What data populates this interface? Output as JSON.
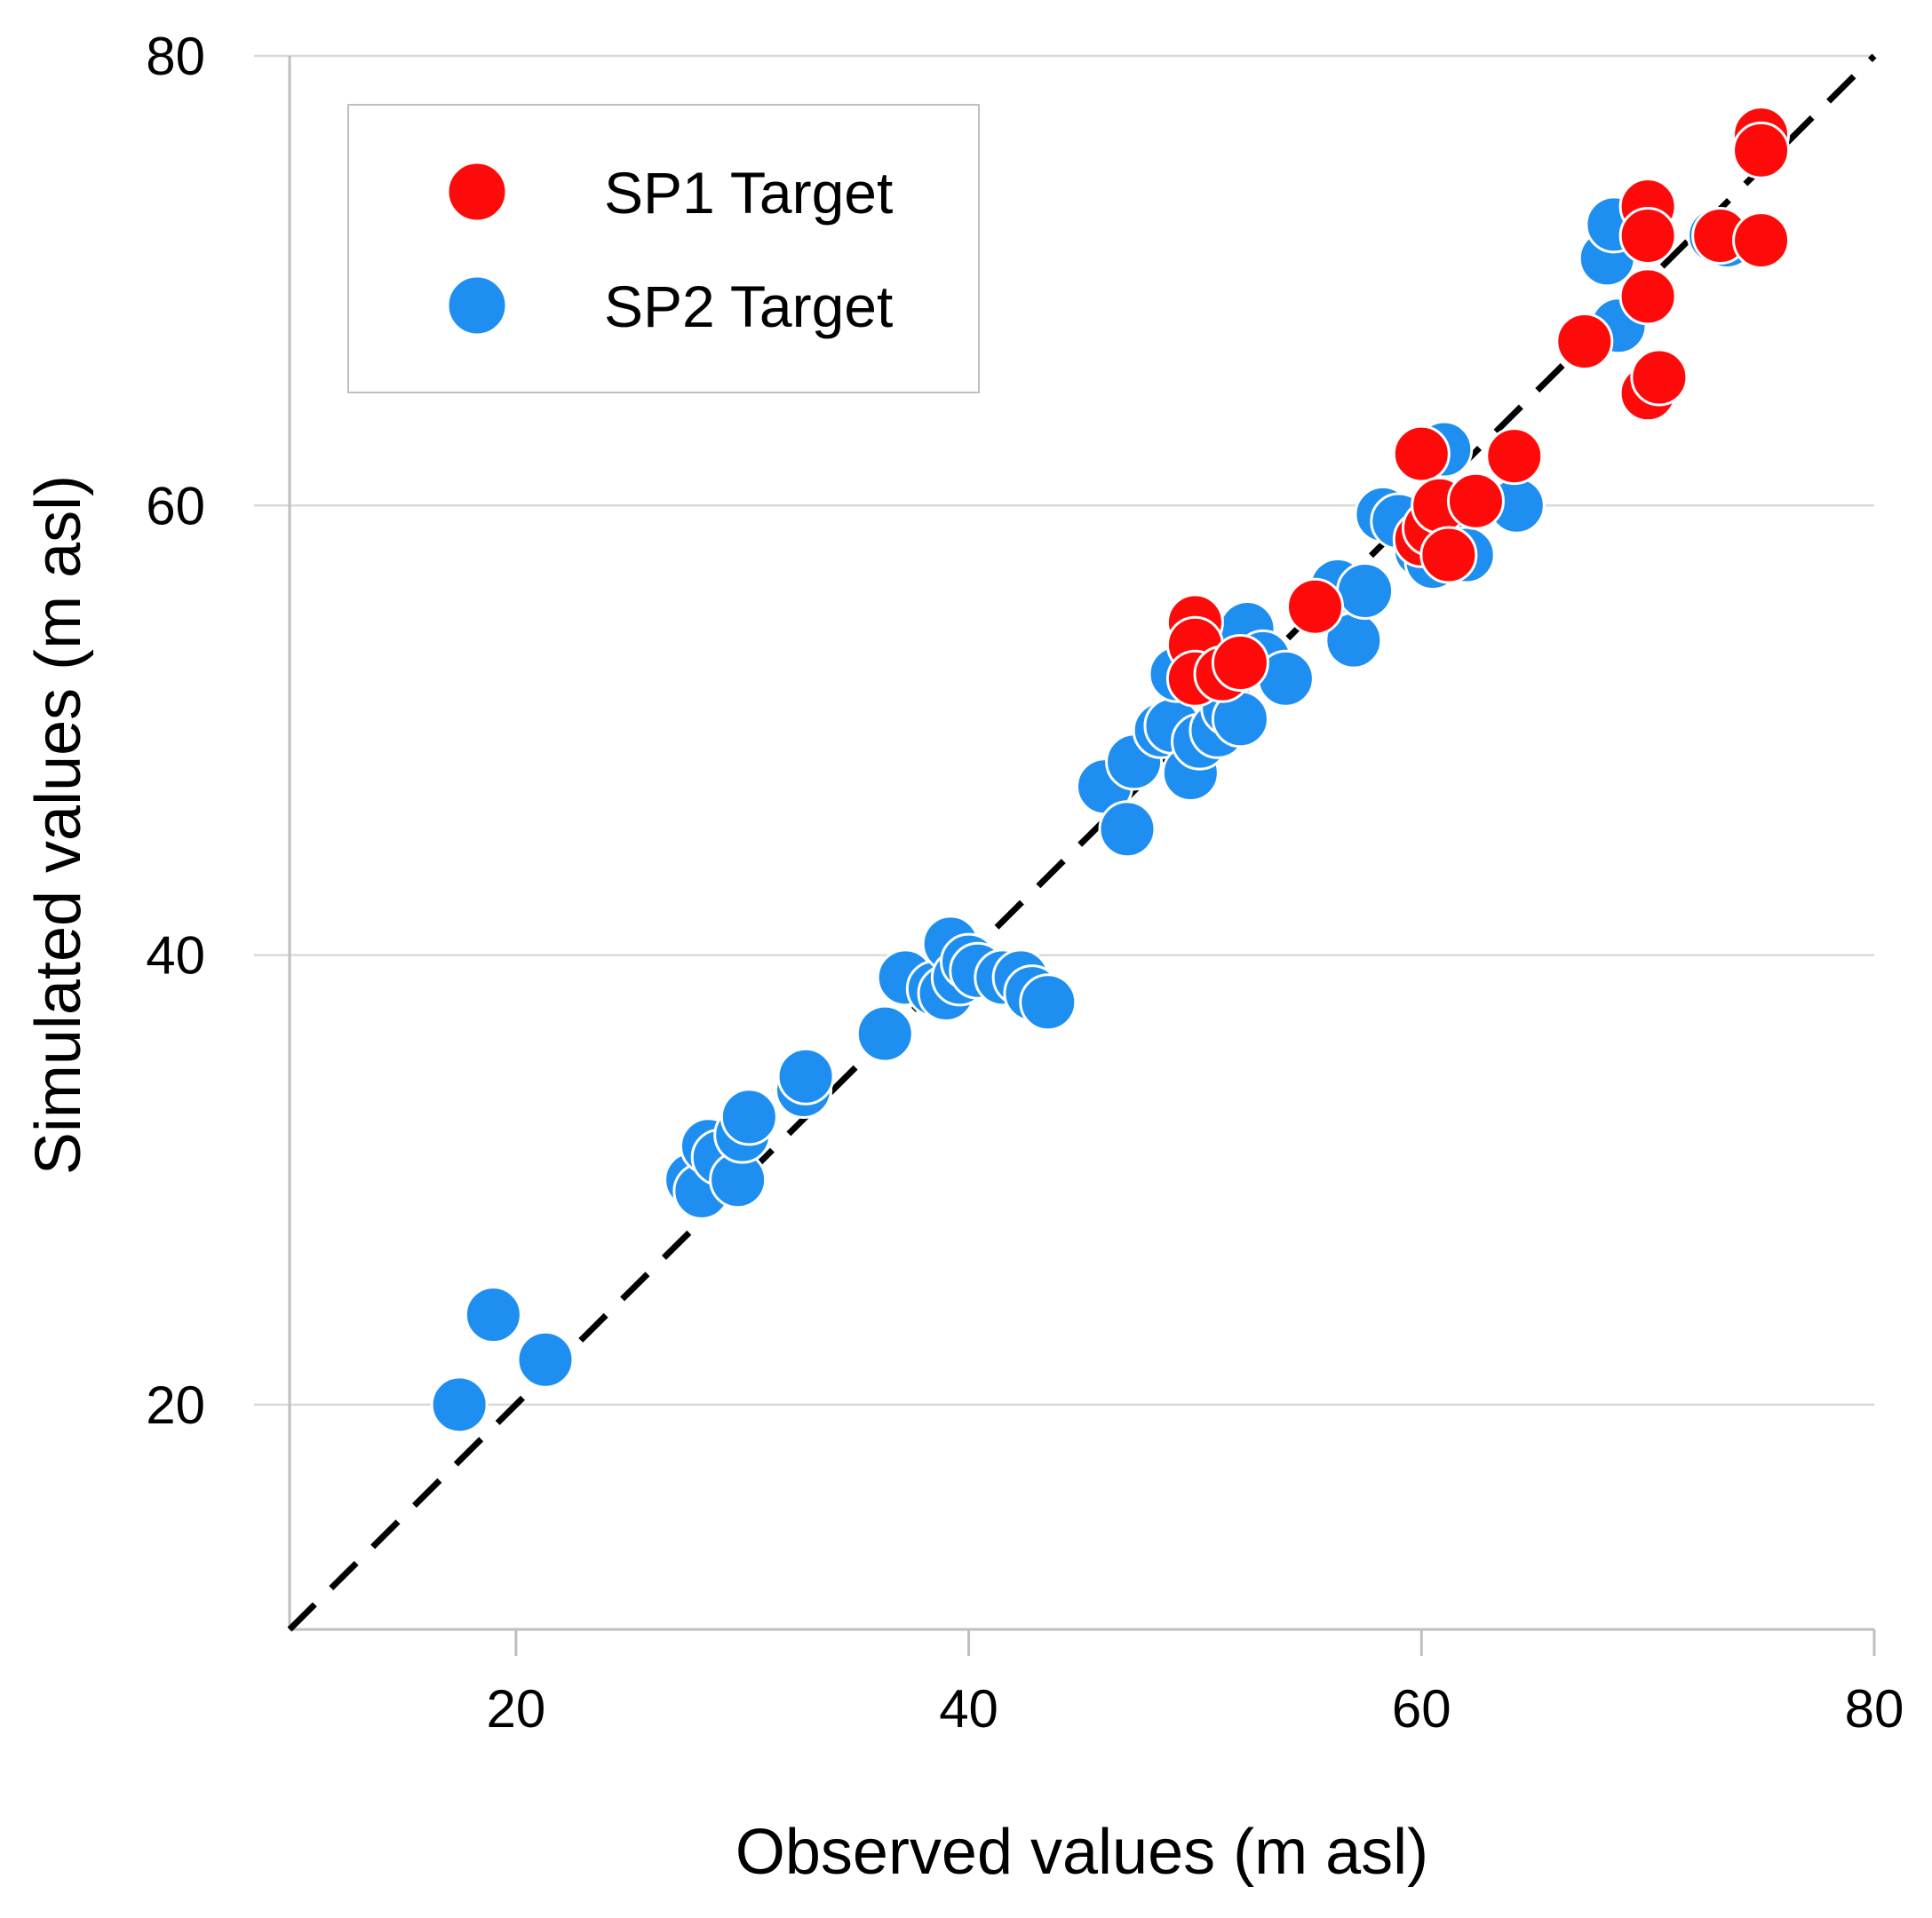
{
  "chart_data": {
    "type": "scatter",
    "title": "",
    "xlabel": "Observed values (m asl)",
    "ylabel": "Simulated values (m asl)",
    "xlim": [
      10,
      80
    ],
    "ylim": [
      10,
      80
    ],
    "xticks": [
      20,
      40,
      60,
      80
    ],
    "yticks": [
      20,
      40,
      60,
      80
    ],
    "grid": "horizontal",
    "reference_line": {
      "type": "1:1",
      "style": "dashed",
      "color": "#000000"
    },
    "legend": {
      "position": "top-left",
      "entries": [
        "SP1 Target",
        "SP2 Target"
      ]
    },
    "series": [
      {
        "name": "SP2 Target",
        "color": "#1E8FF0",
        "points": [
          [
            17.5,
            20.0
          ],
          [
            19.0,
            24.0
          ],
          [
            21.3,
            22.0
          ],
          [
            27.8,
            30.0
          ],
          [
            28.2,
            29.5
          ],
          [
            28.5,
            31.5
          ],
          [
            29.0,
            31.0
          ],
          [
            29.8,
            30.0
          ],
          [
            30.0,
            32.0
          ],
          [
            30.3,
            32.8
          ],
          [
            32.7,
            34.0
          ],
          [
            32.8,
            34.6
          ],
          [
            36.3,
            36.5
          ],
          [
            37.2,
            39.0
          ],
          [
            38.5,
            38.5
          ],
          [
            39.0,
            38.3
          ],
          [
            39.2,
            40.5
          ],
          [
            39.6,
            39.0
          ],
          [
            40.0,
            39.7
          ],
          [
            40.4,
            39.3
          ],
          [
            41.5,
            39.0
          ],
          [
            42.3,
            39.0
          ],
          [
            42.8,
            38.3
          ],
          [
            43.5,
            37.9
          ],
          [
            46.0,
            47.5
          ],
          [
            47.0,
            45.6
          ],
          [
            47.3,
            48.6
          ],
          [
            48.5,
            50.0
          ],
          [
            49.0,
            50.2
          ],
          [
            49.2,
            52.5
          ],
          [
            49.8,
            48.1
          ],
          [
            50.2,
            49.5
          ],
          [
            51.0,
            50.0
          ],
          [
            51.5,
            51.0
          ],
          [
            52.0,
            50.5
          ],
          [
            52.3,
            54.5
          ],
          [
            53.0,
            53.2
          ],
          [
            54.0,
            52.3
          ],
          [
            55.5,
            55.5
          ],
          [
            56.3,
            56.4
          ],
          [
            57.0,
            54.0
          ],
          [
            57.5,
            56.2
          ],
          [
            58.3,
            59.6
          ],
          [
            59.0,
            59.3
          ],
          [
            60.0,
            58.0
          ],
          [
            60.5,
            57.5
          ],
          [
            61.0,
            62.5
          ],
          [
            61.3,
            58.5
          ],
          [
            62.0,
            57.8
          ],
          [
            64.2,
            60.0
          ],
          [
            68.2,
            71.0
          ],
          [
            68.5,
            72.5
          ],
          [
            68.7,
            68.0
          ],
          [
            73.0,
            72.0
          ],
          [
            73.5,
            71.8
          ]
        ]
      },
      {
        "name": "SP1 Target",
        "color": "#FF0A0A",
        "points": [
          [
            50.0,
            54.8
          ],
          [
            50.0,
            53.8
          ],
          [
            50.0,
            52.3
          ],
          [
            51.2,
            52.5
          ],
          [
            52.0,
            53.0
          ],
          [
            55.3,
            55.5
          ],
          [
            60.0,
            62.3
          ],
          [
            60.0,
            58.5
          ],
          [
            60.4,
            59.0
          ],
          [
            60.8,
            60.0
          ],
          [
            61.2,
            57.8
          ],
          [
            62.4,
            60.2
          ],
          [
            64.1,
            62.2
          ],
          [
            67.2,
            67.3
          ],
          [
            70.0,
            73.3
          ],
          [
            70.0,
            72.0
          ],
          [
            70.0,
            69.3
          ],
          [
            70.0,
            65.0
          ],
          [
            70.5,
            65.7
          ],
          [
            73.2,
            72.0
          ],
          [
            75.0,
            76.5
          ],
          [
            75.0,
            75.8
          ],
          [
            75.0,
            71.8
          ]
        ]
      }
    ]
  }
}
